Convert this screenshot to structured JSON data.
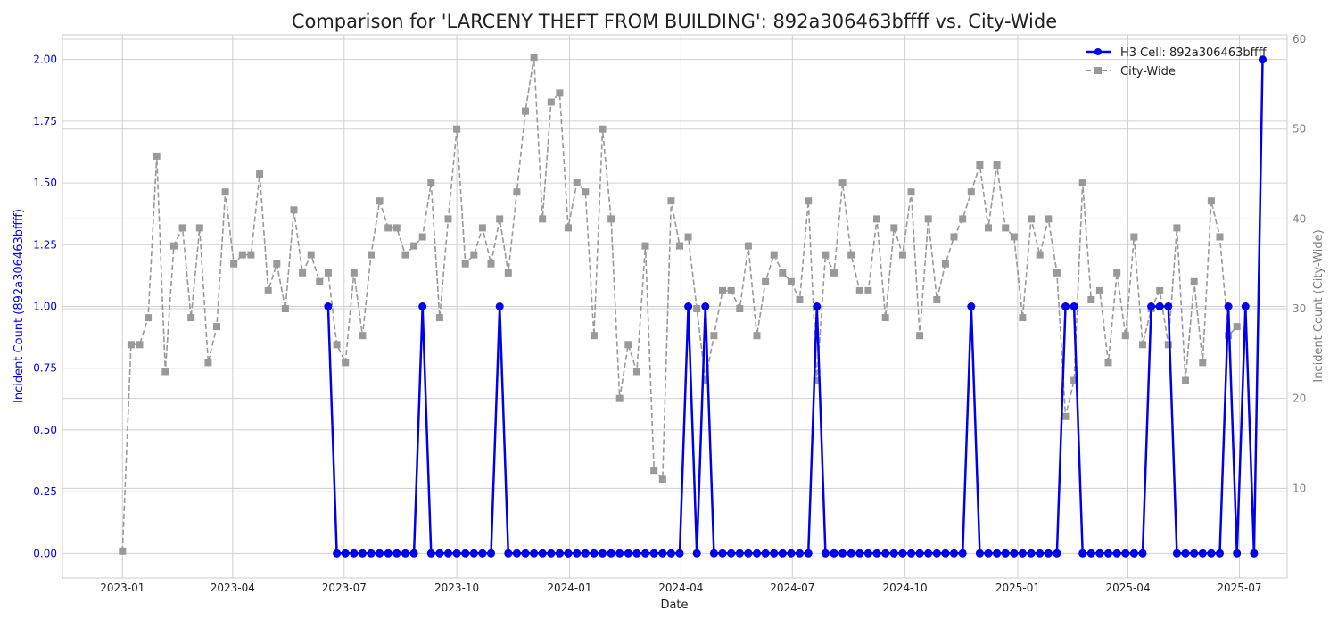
{
  "chart_data": {
    "type": "line",
    "title": "Comparison for 'LARCENY THEFT FROM BUILDING': 892a306463bffff vs. City-Wide",
    "xlabel": "Date",
    "ylabel_left": "Incident Count (892a306463bffff)",
    "ylabel_right": "Incident Count (City-Wide)",
    "x_ticks": [
      "2023-01",
      "2023-04",
      "2023-07",
      "2023-10",
      "2024-01",
      "2024-04",
      "2024-07",
      "2024-10",
      "2025-01",
      "2025-04",
      "2025-07"
    ],
    "y_left_ticks": [
      "0.00",
      "0.25",
      "0.50",
      "0.75",
      "1.00",
      "1.25",
      "1.50",
      "1.75",
      "2.00"
    ],
    "y_right_ticks": [
      "10",
      "20",
      "30",
      "40",
      "50",
      "60"
    ],
    "y_left_range": [
      -0.1,
      2.1
    ],
    "y_right_range": [
      0,
      60.5
    ],
    "x_range": [
      "2022-11-13",
      "2025-08-09"
    ],
    "grid": true,
    "legend_position": "top-right",
    "colors": {
      "h3": "#0000ee",
      "city": "#999999",
      "left_axis": "#0000ee",
      "right_axis": "#808080"
    },
    "series": [
      {
        "name": "H3 Cell: 892a306463bffff",
        "axis": "left",
        "start_date": "2023-06-18",
        "values": [
          1,
          0,
          0,
          0,
          0,
          0,
          0,
          0,
          0,
          0,
          0,
          1,
          0,
          0,
          0,
          0,
          0,
          0,
          0,
          0,
          1,
          0,
          0,
          0,
          0,
          0,
          0,
          0,
          0,
          0,
          0,
          0,
          0,
          0,
          0,
          0,
          0,
          0,
          0,
          0,
          0,
          0,
          1,
          0,
          1,
          0,
          0,
          0,
          0,
          0,
          0,
          0,
          0,
          0,
          0,
          0,
          0,
          1,
          0,
          0,
          0,
          0,
          0,
          0,
          0,
          0,
          0,
          0,
          0,
          0,
          0,
          0,
          0,
          0,
          0,
          1,
          0,
          0,
          0,
          0,
          0,
          0,
          0,
          0,
          0,
          0,
          1,
          1,
          0,
          0,
          0,
          0,
          0,
          0,
          0,
          0,
          1,
          1,
          1,
          0,
          0,
          0,
          0,
          0,
          0,
          1,
          0,
          1,
          0,
          2
        ]
      },
      {
        "name": "City-Wide",
        "axis": "right",
        "start_date": "2023-01-01",
        "values": [
          3,
          26,
          26,
          29,
          47,
          23,
          37,
          39,
          29,
          39,
          24,
          28,
          43,
          35,
          36,
          36,
          45,
          32,
          35,
          30,
          41,
          34,
          36,
          33,
          34,
          26,
          24,
          34,
          27,
          36,
          42,
          39,
          39,
          36,
          37,
          38,
          44,
          29,
          40,
          50,
          35,
          36,
          39,
          35,
          40,
          34,
          43,
          52,
          58,
          40,
          53,
          54,
          39,
          44,
          43,
          27,
          50,
          40,
          20,
          26,
          23,
          37,
          12,
          11,
          42,
          37,
          38,
          30,
          22,
          27,
          32,
          32,
          30,
          37,
          27,
          33,
          36,
          34,
          33,
          31,
          42,
          22,
          36,
          34,
          44,
          36,
          32,
          32,
          40,
          29,
          39,
          36,
          43,
          27,
          40,
          31,
          35,
          38,
          40,
          43,
          46,
          39,
          46,
          39,
          38,
          29,
          40,
          36,
          40,
          34,
          18,
          22,
          44,
          31,
          32,
          24,
          34,
          27,
          38,
          26,
          30,
          32,
          26,
          39,
          22,
          33,
          24,
          42,
          38,
          27,
          28
        ]
      }
    ]
  }
}
